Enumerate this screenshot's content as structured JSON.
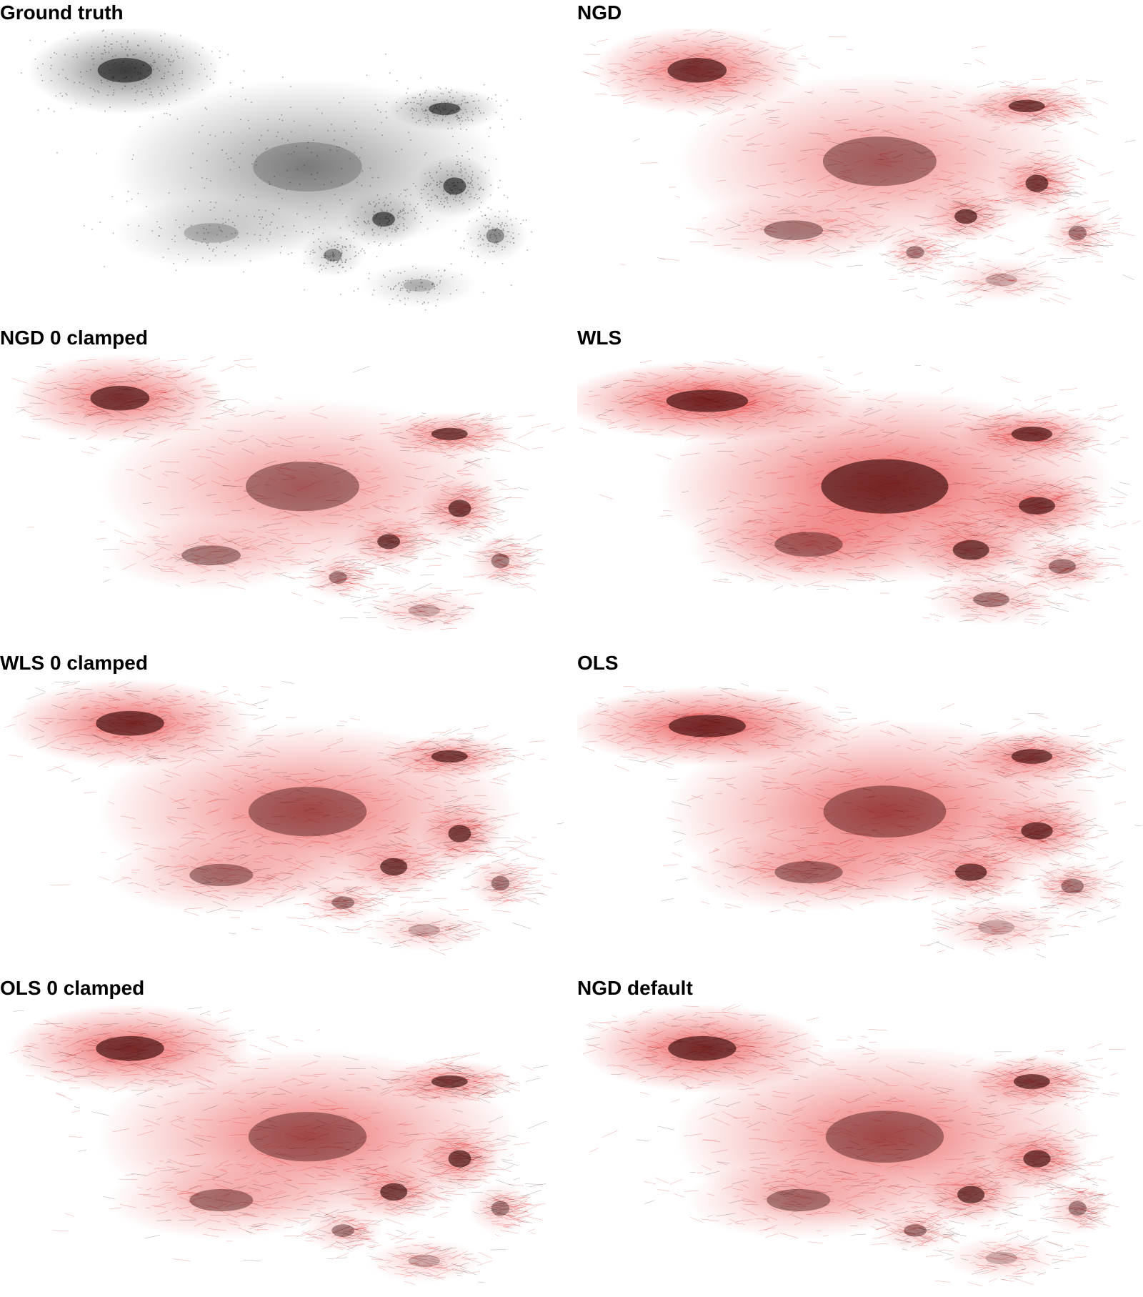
{
  "colors": {
    "ground_truth": "#111111",
    "reconstruction": "#e00000",
    "dense_core": "#000000",
    "background": "#ffffff"
  },
  "chart_data": [
    {
      "type": "scatter",
      "title": "Ground truth",
      "style": "points",
      "color": "#111111",
      "axes_visible": false,
      "clusters": [
        {
          "x": 0.19,
          "y": 0.12,
          "sx": 0.12,
          "sy": 0.1,
          "w": 1.0,
          "peak": "dark"
        },
        {
          "x": 0.55,
          "y": 0.47,
          "sx": 0.24,
          "sy": 0.2,
          "w": 0.8,
          "peak": "light"
        },
        {
          "x": 0.82,
          "y": 0.26,
          "sx": 0.07,
          "sy": 0.05,
          "w": 0.7,
          "peak": "dark"
        },
        {
          "x": 0.84,
          "y": 0.54,
          "sx": 0.05,
          "sy": 0.07,
          "w": 0.6,
          "peak": "dark"
        },
        {
          "x": 0.7,
          "y": 0.66,
          "sx": 0.05,
          "sy": 0.06,
          "w": 0.5,
          "peak": "dark"
        },
        {
          "x": 0.6,
          "y": 0.79,
          "sx": 0.04,
          "sy": 0.05,
          "w": 0.4,
          "peak": "medium"
        },
        {
          "x": 0.36,
          "y": 0.71,
          "sx": 0.12,
          "sy": 0.08,
          "w": 0.4,
          "peak": "light"
        },
        {
          "x": 0.92,
          "y": 0.72,
          "sx": 0.04,
          "sy": 0.06,
          "w": 0.4,
          "peak": "medium"
        },
        {
          "x": 0.77,
          "y": 0.9,
          "sx": 0.07,
          "sy": 0.05,
          "w": 0.35,
          "peak": "light"
        }
      ]
    },
    {
      "type": "scatter",
      "title": "NGD",
      "style": "edges",
      "color": "#e00000",
      "axes_visible": false,
      "clusters": [
        {
          "x": 0.18,
          "y": 0.12,
          "sx": 0.13,
          "sy": 0.1,
          "w": 1.0,
          "peak": "dark"
        },
        {
          "x": 0.54,
          "y": 0.45,
          "sx": 0.25,
          "sy": 0.2,
          "w": 0.8,
          "peak": "medium"
        },
        {
          "x": 0.83,
          "y": 0.25,
          "sx": 0.08,
          "sy": 0.05,
          "w": 0.7,
          "peak": "dark"
        },
        {
          "x": 0.85,
          "y": 0.53,
          "sx": 0.05,
          "sy": 0.07,
          "w": 0.6,
          "peak": "dark"
        },
        {
          "x": 0.71,
          "y": 0.65,
          "sx": 0.05,
          "sy": 0.06,
          "w": 0.5,
          "peak": "dark"
        },
        {
          "x": 0.61,
          "y": 0.78,
          "sx": 0.04,
          "sy": 0.05,
          "w": 0.4,
          "peak": "medium"
        },
        {
          "x": 0.37,
          "y": 0.7,
          "sx": 0.13,
          "sy": 0.08,
          "w": 0.45,
          "peak": "medium"
        },
        {
          "x": 0.93,
          "y": 0.71,
          "sx": 0.04,
          "sy": 0.06,
          "w": 0.4,
          "peak": "medium"
        },
        {
          "x": 0.78,
          "y": 0.88,
          "sx": 0.07,
          "sy": 0.05,
          "w": 0.35,
          "peak": "light"
        }
      ]
    },
    {
      "type": "scatter",
      "title": "NGD 0 clamped",
      "style": "edges",
      "color": "#e00000",
      "axes_visible": false,
      "clusters": [
        {
          "x": 0.18,
          "y": 0.13,
          "sx": 0.13,
          "sy": 0.1,
          "w": 1.0,
          "peak": "dark"
        },
        {
          "x": 0.54,
          "y": 0.45,
          "sx": 0.25,
          "sy": 0.2,
          "w": 0.8,
          "peak": "medium"
        },
        {
          "x": 0.83,
          "y": 0.26,
          "sx": 0.08,
          "sy": 0.05,
          "w": 0.7,
          "peak": "dark"
        },
        {
          "x": 0.85,
          "y": 0.53,
          "sx": 0.05,
          "sy": 0.07,
          "w": 0.6,
          "peak": "dark"
        },
        {
          "x": 0.71,
          "y": 0.65,
          "sx": 0.05,
          "sy": 0.06,
          "w": 0.5,
          "peak": "dark"
        },
        {
          "x": 0.61,
          "y": 0.78,
          "sx": 0.04,
          "sy": 0.05,
          "w": 0.4,
          "peak": "medium"
        },
        {
          "x": 0.36,
          "y": 0.7,
          "sx": 0.13,
          "sy": 0.08,
          "w": 0.45,
          "peak": "medium"
        },
        {
          "x": 0.93,
          "y": 0.72,
          "sx": 0.04,
          "sy": 0.06,
          "w": 0.4,
          "peak": "medium"
        },
        {
          "x": 0.78,
          "y": 0.9,
          "sx": 0.07,
          "sy": 0.05,
          "w": 0.35,
          "peak": "light"
        }
      ]
    },
    {
      "type": "scatter",
      "title": "WLS",
      "style": "edges",
      "color": "#e00000",
      "axes_visible": false,
      "clusters": [
        {
          "x": 0.2,
          "y": 0.14,
          "sx": 0.18,
          "sy": 0.09,
          "w": 1.2,
          "peak": "dark"
        },
        {
          "x": 0.55,
          "y": 0.45,
          "sx": 0.28,
          "sy": 0.22,
          "w": 1.2,
          "peak": "dark"
        },
        {
          "x": 0.84,
          "y": 0.26,
          "sx": 0.09,
          "sy": 0.06,
          "w": 0.8,
          "peak": "dark"
        },
        {
          "x": 0.85,
          "y": 0.52,
          "sx": 0.08,
          "sy": 0.07,
          "w": 0.7,
          "peak": "dark"
        },
        {
          "x": 0.72,
          "y": 0.68,
          "sx": 0.08,
          "sy": 0.08,
          "w": 0.6,
          "peak": "dark"
        },
        {
          "x": 0.4,
          "y": 0.66,
          "sx": 0.15,
          "sy": 0.1,
          "w": 0.7,
          "peak": "medium"
        },
        {
          "x": 0.9,
          "y": 0.74,
          "sx": 0.06,
          "sy": 0.06,
          "w": 0.5,
          "peak": "medium"
        },
        {
          "x": 0.76,
          "y": 0.86,
          "sx": 0.08,
          "sy": 0.06,
          "w": 0.45,
          "peak": "medium"
        }
      ]
    },
    {
      "type": "scatter",
      "title": "WLS 0 clamped",
      "style": "edges",
      "color": "#e00000",
      "axes_visible": false,
      "clusters": [
        {
          "x": 0.2,
          "y": 0.13,
          "sx": 0.15,
          "sy": 0.1,
          "w": 1.1,
          "peak": "dark"
        },
        {
          "x": 0.55,
          "y": 0.45,
          "sx": 0.26,
          "sy": 0.2,
          "w": 1.0,
          "peak": "medium"
        },
        {
          "x": 0.83,
          "y": 0.25,
          "sx": 0.08,
          "sy": 0.05,
          "w": 0.7,
          "peak": "dark"
        },
        {
          "x": 0.85,
          "y": 0.53,
          "sx": 0.05,
          "sy": 0.07,
          "w": 0.6,
          "peak": "dark"
        },
        {
          "x": 0.72,
          "y": 0.65,
          "sx": 0.06,
          "sy": 0.07,
          "w": 0.5,
          "peak": "dark"
        },
        {
          "x": 0.62,
          "y": 0.78,
          "sx": 0.05,
          "sy": 0.05,
          "w": 0.4,
          "peak": "medium"
        },
        {
          "x": 0.38,
          "y": 0.68,
          "sx": 0.14,
          "sy": 0.09,
          "w": 0.55,
          "peak": "medium"
        },
        {
          "x": 0.93,
          "y": 0.71,
          "sx": 0.04,
          "sy": 0.06,
          "w": 0.4,
          "peak": "medium"
        },
        {
          "x": 0.78,
          "y": 0.88,
          "sx": 0.07,
          "sy": 0.05,
          "w": 0.35,
          "peak": "light"
        }
      ]
    },
    {
      "type": "scatter",
      "title": "OLS",
      "style": "edges",
      "color": "#e00000",
      "axes_visible": false,
      "clusters": [
        {
          "x": 0.2,
          "y": 0.14,
          "sx": 0.17,
          "sy": 0.09,
          "w": 1.2,
          "peak": "dark"
        },
        {
          "x": 0.55,
          "y": 0.45,
          "sx": 0.27,
          "sy": 0.21,
          "w": 1.1,
          "peak": "medium"
        },
        {
          "x": 0.84,
          "y": 0.25,
          "sx": 0.09,
          "sy": 0.06,
          "w": 0.8,
          "peak": "dark"
        },
        {
          "x": 0.85,
          "y": 0.52,
          "sx": 0.07,
          "sy": 0.07,
          "w": 0.7,
          "peak": "dark"
        },
        {
          "x": 0.72,
          "y": 0.67,
          "sx": 0.07,
          "sy": 0.07,
          "w": 0.6,
          "peak": "dark"
        },
        {
          "x": 0.4,
          "y": 0.67,
          "sx": 0.15,
          "sy": 0.09,
          "w": 0.6,
          "peak": "medium"
        },
        {
          "x": 0.92,
          "y": 0.72,
          "sx": 0.05,
          "sy": 0.06,
          "w": 0.45,
          "peak": "medium"
        },
        {
          "x": 0.77,
          "y": 0.87,
          "sx": 0.08,
          "sy": 0.06,
          "w": 0.4,
          "peak": "light"
        }
      ]
    },
    {
      "type": "scatter",
      "title": "OLS 0 clamped",
      "style": "edges",
      "color": "#e00000",
      "axes_visible": false,
      "clusters": [
        {
          "x": 0.2,
          "y": 0.13,
          "sx": 0.15,
          "sy": 0.1,
          "w": 1.1,
          "peak": "dark"
        },
        {
          "x": 0.55,
          "y": 0.45,
          "sx": 0.26,
          "sy": 0.2,
          "w": 1.0,
          "peak": "medium"
        },
        {
          "x": 0.83,
          "y": 0.25,
          "sx": 0.08,
          "sy": 0.05,
          "w": 0.7,
          "peak": "dark"
        },
        {
          "x": 0.85,
          "y": 0.53,
          "sx": 0.05,
          "sy": 0.07,
          "w": 0.6,
          "peak": "dark"
        },
        {
          "x": 0.72,
          "y": 0.65,
          "sx": 0.06,
          "sy": 0.07,
          "w": 0.5,
          "peak": "dark"
        },
        {
          "x": 0.62,
          "y": 0.79,
          "sx": 0.05,
          "sy": 0.05,
          "w": 0.4,
          "peak": "medium"
        },
        {
          "x": 0.38,
          "y": 0.68,
          "sx": 0.14,
          "sy": 0.09,
          "w": 0.55,
          "peak": "medium"
        },
        {
          "x": 0.93,
          "y": 0.71,
          "sx": 0.04,
          "sy": 0.06,
          "w": 0.4,
          "peak": "medium"
        },
        {
          "x": 0.78,
          "y": 0.9,
          "sx": 0.07,
          "sy": 0.05,
          "w": 0.35,
          "peak": "light"
        }
      ]
    },
    {
      "type": "scatter",
      "title": "NGD default",
      "style": "edges",
      "color": "#e00000",
      "axes_visible": false,
      "clusters": [
        {
          "x": 0.19,
          "y": 0.13,
          "sx": 0.15,
          "sy": 0.1,
          "w": 1.1,
          "peak": "dark"
        },
        {
          "x": 0.55,
          "y": 0.45,
          "sx": 0.26,
          "sy": 0.21,
          "w": 1.0,
          "peak": "medium"
        },
        {
          "x": 0.84,
          "y": 0.25,
          "sx": 0.08,
          "sy": 0.06,
          "w": 0.75,
          "peak": "dark"
        },
        {
          "x": 0.85,
          "y": 0.53,
          "sx": 0.06,
          "sy": 0.07,
          "w": 0.65,
          "peak": "dark"
        },
        {
          "x": 0.72,
          "y": 0.66,
          "sx": 0.06,
          "sy": 0.07,
          "w": 0.55,
          "peak": "dark"
        },
        {
          "x": 0.61,
          "y": 0.79,
          "sx": 0.05,
          "sy": 0.05,
          "w": 0.4,
          "peak": "medium"
        },
        {
          "x": 0.38,
          "y": 0.68,
          "sx": 0.14,
          "sy": 0.09,
          "w": 0.55,
          "peak": "medium"
        },
        {
          "x": 0.93,
          "y": 0.71,
          "sx": 0.04,
          "sy": 0.06,
          "w": 0.4,
          "peak": "medium"
        },
        {
          "x": 0.78,
          "y": 0.89,
          "sx": 0.07,
          "sy": 0.05,
          "w": 0.35,
          "peak": "light"
        }
      ]
    }
  ]
}
